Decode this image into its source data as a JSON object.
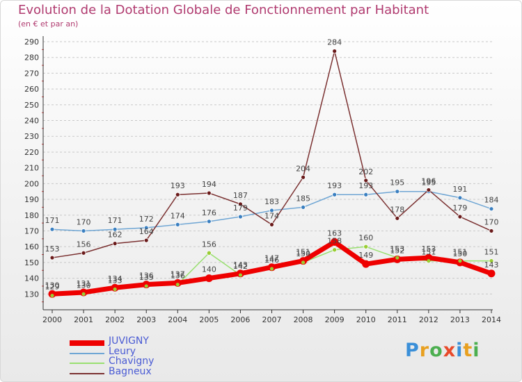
{
  "title": "Evolution de la Dotation Globale de Fonctionnement par Habitant",
  "subtitle": "(en € et par an)",
  "logo": {
    "text": "Proxiti",
    "colors": [
      "#3a8fd8",
      "#e8a020",
      "#4caf50",
      "#e84a2a",
      "#3a8fd8",
      "#e8a020",
      "#4caf50"
    ]
  },
  "chart_data": {
    "type": "line",
    "title": "Evolution de la Dotation Globale de Fonctionnement par Habitant",
    "subtitle": "(en € et par an)",
    "xlabel": "",
    "ylabel": "",
    "x": [
      "2000",
      "2001",
      "2002",
      "2003",
      "2004",
      "2005",
      "2006",
      "2007",
      "2008",
      "2009",
      "2010",
      "2011",
      "2012",
      "2013",
      "2014"
    ],
    "ylim": [
      120,
      290
    ],
    "yticks": [
      130,
      140,
      150,
      160,
      170,
      180,
      190,
      200,
      210,
      220,
      230,
      240,
      250,
      260,
      270,
      280,
      290
    ],
    "grid": "horizontal dashed",
    "legend_position": "bottom-left",
    "series": [
      {
        "name": "JUVIGNY",
        "color": "#ee0000",
        "marker": "#ee0000",
        "values": [
          130,
          131,
          134,
          136,
          137,
          140,
          143,
          147,
          151,
          163,
          149,
          152,
          153,
          150,
          143
        ],
        "labels": [
          "130",
          "131",
          "134",
          "136",
          "137",
          "140",
          "143",
          "147",
          "151",
          "163",
          "149",
          "152",
          "153",
          "150",
          "143"
        ]
      },
      {
        "name": "Leury",
        "color": "#6fa6d4",
        "marker": "#3a7fc0",
        "values": [
          171,
          170,
          171,
          172,
          174,
          176,
          179,
          183,
          185,
          193,
          193,
          195,
          195,
          191,
          184
        ],
        "labels": [
          "171",
          "170",
          "171",
          "172",
          "174",
          "176",
          "179",
          "183",
          "185",
          "193",
          "193",
          "195",
          "195",
          "191",
          "184"
        ]
      },
      {
        "name": "Chavigny",
        "color": "#99e070",
        "marker": "#7ac043",
        "values": [
          129,
          130,
          133,
          135,
          136,
          156,
          142,
          146,
          150,
          158,
          160,
          153,
          151,
          151,
          151
        ],
        "labels": [
          "129",
          "130",
          "133",
          "135",
          "136",
          "156",
          "142",
          "146",
          "150",
          "158",
          "160",
          "153",
          "151",
          "151",
          "151"
        ]
      },
      {
        "name": "Bagneux",
        "color": "#7a3030",
        "marker": "#6a1a1a",
        "values": [
          153,
          156,
          162,
          164,
          193,
          194,
          187,
          174,
          204,
          284,
          202,
          178,
          196,
          179,
          170
        ],
        "labels": [
          "153",
          "156",
          "162",
          "164",
          "193",
          "194",
          "187",
          "174",
          "204",
          "284",
          "202",
          "178",
          "196",
          "179",
          "170"
        ]
      }
    ]
  }
}
